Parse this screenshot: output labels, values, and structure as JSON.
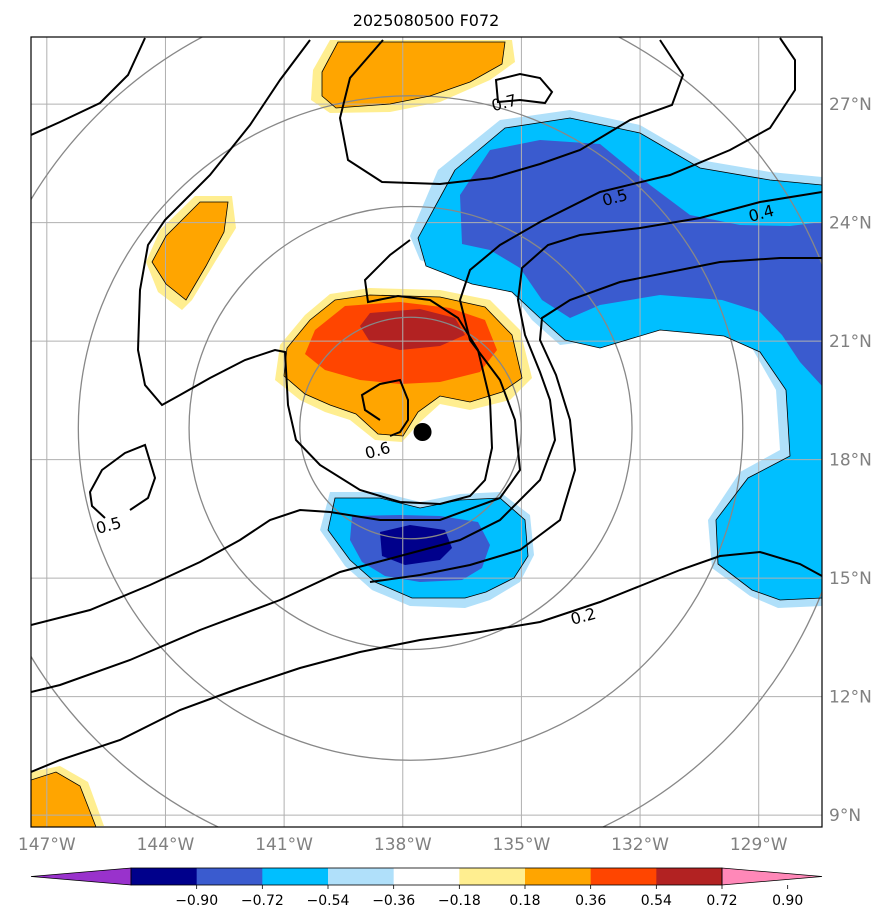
{
  "title": "2025080500 F072",
  "lon_ticks": [
    {
      "lon": -147,
      "label": "147°W"
    },
    {
      "lon": -144,
      "label": "144°W"
    },
    {
      "lon": -141,
      "label": "141°W"
    },
    {
      "lon": -138,
      "label": "138°W"
    },
    {
      "lon": -135,
      "label": "135°W"
    },
    {
      "lon": -132,
      "label": "132°W"
    },
    {
      "lon": -129,
      "label": "129°W"
    }
  ],
  "lat_ticks": [
    {
      "lat": 27,
      "label": "27°N"
    },
    {
      "lat": 24,
      "label": "24°N"
    },
    {
      "lat": 21,
      "label": "21°N"
    },
    {
      "lat": 18,
      "label": "18°N"
    },
    {
      "lat": 15,
      "label": "15°N"
    },
    {
      "lat": 12,
      "label": "12°N"
    },
    {
      "lat": 9,
      "label": "9°N"
    }
  ],
  "extent": {
    "lon_min": -147.4,
    "lon_max": -127.4,
    "lat_min": 8.7,
    "lat_max": 28.7
  },
  "storm_center": {
    "lon": -137.5,
    "lat": 18.7
  },
  "range_rings_deg": [
    2.8,
    5.6,
    8.4,
    11.2
  ],
  "contour_labels": [
    {
      "text": "0.7",
      "lon": -135.4,
      "lat": 26.9
    },
    {
      "text": "0.5",
      "lon": -132.6,
      "lat": 24.5
    },
    {
      "text": "0.4",
      "lon": -128.9,
      "lat": 24.1
    },
    {
      "text": "0.6",
      "lon": -138.6,
      "lat": 18.1
    },
    {
      "text": "0.5",
      "lon": -145.4,
      "lat": 16.2
    },
    {
      "text": "0.2",
      "lon": -133.4,
      "lat": 13.9
    }
  ],
  "colorbar": {
    "levels": [
      "−0.90",
      "−0.72",
      "−0.54",
      "−0.36",
      "−0.18",
      "0.18",
      "0.36",
      "0.54",
      "0.72",
      "0.90"
    ],
    "colors": [
      "#9932cc",
      "#00008b",
      "#3a5bcf",
      "#00bfff",
      "#b0e0fa",
      "#ffffff",
      "#ffee90",
      "#ffa500",
      "#ff4500",
      "#b22222",
      "#ff88b8"
    ]
  },
  "fill_colors": {
    "neg_1": "#b0e0fa",
    "neg_2": "#00bfff",
    "neg_3": "#3a5bcf",
    "neg_4": "#00008b",
    "pos_1": "#ffee90",
    "pos_2": "#ffa500",
    "pos_3": "#ff4500",
    "pos_4": "#b22222"
  }
}
